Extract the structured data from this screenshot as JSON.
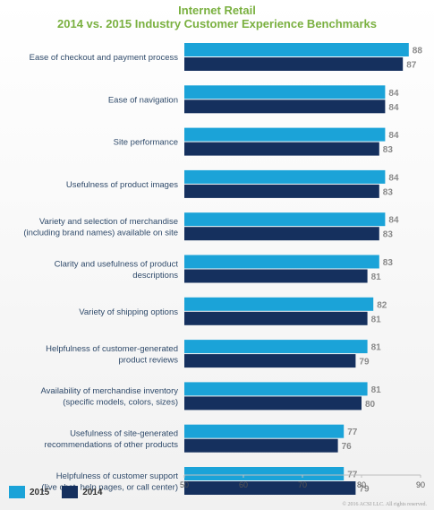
{
  "chart_data": {
    "type": "bar",
    "orientation": "horizontal",
    "title": "Internet Retail",
    "subtitle": "2014 vs. 2015 Industry Customer Experience Benchmarks",
    "categories": [
      [
        "Ease of checkout and payment process"
      ],
      [
        "Ease of navigation"
      ],
      [
        "Site performance"
      ],
      [
        "Usefulness of product images"
      ],
      [
        "Variety and selection of merchandise",
        "(including brand names) available on site"
      ],
      [
        "Clarity and usefulness of product",
        "descriptions"
      ],
      [
        "Variety of shipping options"
      ],
      [
        "Helpfulness of customer-generated",
        "product reviews"
      ],
      [
        "Availability of merchandise inventory",
        "(specific models, colors, sizes)"
      ],
      [
        "Usefulness of site-generated",
        "recommendations of other products"
      ],
      [
        "Helpfulness of customer support",
        "(live chat, help pages, or call center)"
      ]
    ],
    "series": [
      {
        "name": "2015",
        "color": "#1ba3d8",
        "values": [
          88,
          84,
          84,
          84,
          84,
          83,
          82,
          81,
          81,
          77,
          77
        ]
      },
      {
        "name": "2014",
        "color": "#15305e",
        "values": [
          87,
          84,
          83,
          83,
          83,
          81,
          81,
          79,
          80,
          76,
          79
        ]
      }
    ],
    "xlim": [
      50,
      90
    ],
    "xticks": [
      50,
      60,
      70,
      80,
      90
    ],
    "grid": false,
    "legend": "bottom-left"
  },
  "copyright": "© 2016 ACSI LLC. All rights reserved."
}
